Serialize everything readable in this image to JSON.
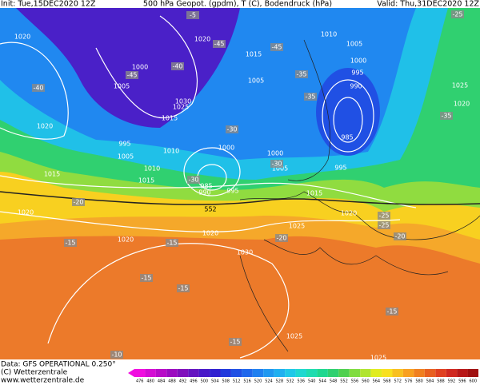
{
  "header": {
    "init": "Init: Tue,15DEC2020 12Z",
    "title": "500 hPa Geopot. (gpdm), T (C), Bodendruck (hPa)",
    "valid": "Valid: Thu,31DEC2020 12Z"
  },
  "footer": {
    "data": "Data: GFS OPERATIONAL 0.250°",
    "copyright": "(C) Wetterzentrale",
    "url": "www.wetterzentrale.de"
  },
  "map": {
    "isobar_labels": [
      1020,
      1005,
      1000,
      1020,
      1010,
      1005,
      1000,
      995,
      990,
      985,
      1015,
      1005,
      1030,
      1025,
      1015,
      1020,
      995,
      1005,
      1010,
      1000,
      1000,
      1005,
      995,
      1015,
      1015,
      985,
      990,
      995,
      1015,
      1020,
      1020,
      1025,
      1020,
      1020,
      1030,
      1025,
      1025,
      1025,
      1020,
      1010
    ],
    "temperature_labels": [
      -40,
      -45,
      -40,
      -45,
      -35,
      -45,
      -35,
      -30,
      -35,
      -25,
      -30,
      -20,
      -30,
      -25,
      -25,
      -20,
      -15,
      -15,
      -20,
      -15,
      -15,
      -15,
      -15,
      -10,
      -5
    ],
    "geopotential_label": 552
  },
  "colorbar": {
    "labels": [
      476,
      480,
      484,
      488,
      492,
      496,
      500,
      504,
      508,
      512,
      516,
      520,
      524,
      528,
      532,
      536,
      540,
      544,
      548,
      552,
      556,
      560,
      564,
      568,
      572,
      576,
      580,
      584,
      588,
      592,
      596,
      600
    ],
    "colors": [
      "#f00ee0",
      "#d40dd4",
      "#b80cc8",
      "#9c0cc0",
      "#8010bc",
      "#6414c0",
      "#4818c8",
      "#3020d0",
      "#2038dc",
      "#2050e4",
      "#2068ec",
      "#2080f0",
      "#2098f0",
      "#20b0f0",
      "#20c8e8",
      "#20d8d0",
      "#20dcb0",
      "#20d890",
      "#30d070",
      "#50d050",
      "#80dc40",
      "#b0e430",
      "#e0ec20",
      "#f8e020",
      "#f8c020",
      "#f8a020",
      "#f08020",
      "#e86020",
      "#e04020",
      "#d02820",
      "#b81818",
      "#a01010"
    ]
  }
}
